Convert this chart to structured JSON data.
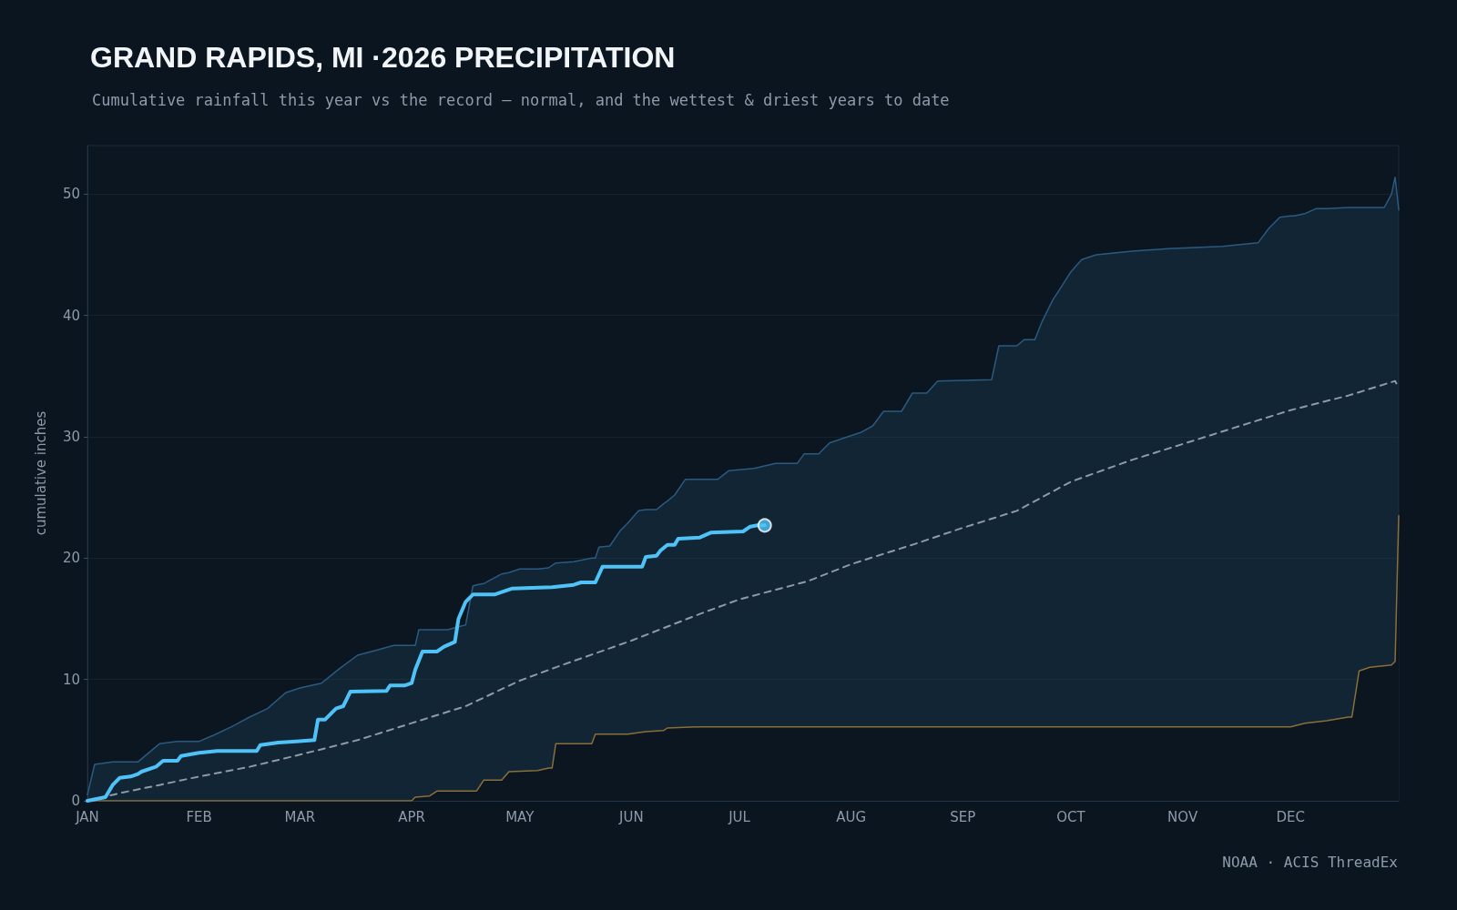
{
  "chart_data": {
    "type": "line",
    "title": "GRAND RAPIDS, MI ·2026 PRECIPITATION",
    "subtitle": "Cumulative rainfall this year vs the record — normal, and the wettest & driest years to date",
    "ylabel": "cumulative inches",
    "annotations": [
      "NOAA · ACIS ThreadEx"
    ],
    "xlim": [
      "2026-01-01",
      "2026-12-31"
    ],
    "xticks": [
      {
        "value": "2026-01-01",
        "label": "JAN"
      },
      {
        "value": "2026-02-01",
        "label": "FEB"
      },
      {
        "value": "2026-03-01",
        "label": "MAR"
      },
      {
        "value": "2026-04-01",
        "label": "APR"
      },
      {
        "value": "2026-05-01",
        "label": "MAY"
      },
      {
        "value": "2026-06-01",
        "label": "JUN"
      },
      {
        "value": "2026-07-01",
        "label": "JUL"
      },
      {
        "value": "2026-08-01",
        "label": "AUG"
      },
      {
        "value": "2026-09-01",
        "label": "SEP"
      },
      {
        "value": "2026-10-01",
        "label": "OCT"
      },
      {
        "value": "2026-11-01",
        "label": "NOV"
      },
      {
        "value": "2026-12-01",
        "label": "DEC"
      }
    ],
    "ylim": [
      0,
      54
    ],
    "yticks": [
      0,
      10,
      20,
      30,
      40,
      50
    ],
    "grid": "y",
    "marker": "none",
    "series": [
      {
        "type": "area",
        "color": "#2b5a80",
        "x": [
          "2026-01-01",
          "2026-01-03",
          "2026-01-08",
          "2026-01-15",
          "2026-01-17",
          "2026-01-21",
          "2026-01-26",
          "2026-02-01",
          "2026-02-05",
          "2026-02-10",
          "2026-02-15",
          "2026-02-20",
          "2026-02-25",
          "2026-03-01",
          "2026-03-07",
          "2026-03-12",
          "2026-03-17",
          "2026-03-22",
          "2026-03-27",
          "2026-04-01",
          "2026-04-02",
          "2026-04-03",
          "2026-04-06",
          "2026-04-08",
          "2026-04-11",
          "2026-04-16",
          "2026-04-18",
          "2026-04-19",
          "2026-04-21",
          "2026-04-26",
          "2026-04-28",
          "2026-05-01",
          "2026-05-06",
          "2026-05-09",
          "2026-05-11",
          "2026-05-16",
          "2026-05-21",
          "2026-05-22",
          "2026-05-23",
          "2026-05-26",
          "2026-05-29",
          "2026-05-31",
          "2026-06-03",
          "2026-06-05",
          "2026-06-08",
          "2026-06-10",
          "2026-06-11",
          "2026-06-13",
          "2026-06-16",
          "2026-06-20",
          "2026-06-25",
          "2026-06-28",
          "2026-07-05",
          "2026-07-11",
          "2026-07-17",
          "2026-07-19",
          "2026-07-23",
          "2026-07-26",
          "2026-07-31",
          "2026-08-04",
          "2026-08-07",
          "2026-08-10",
          "2026-08-15",
          "2026-08-18",
          "2026-08-22",
          "2026-08-25",
          "2026-09-09",
          "2026-09-11",
          "2026-09-16",
          "2026-09-18",
          "2026-09-21",
          "2026-09-23",
          "2026-09-26",
          "2026-09-28",
          "2026-10-01",
          "2026-10-04",
          "2026-10-08",
          "2026-10-18",
          "2026-10-28",
          "2026-11-12",
          "2026-11-22",
          "2026-11-25",
          "2026-11-28",
          "2026-12-01",
          "2026-12-02",
          "2026-12-05",
          "2026-12-08",
          "2026-12-11",
          "2026-12-17",
          "2026-12-18",
          "2026-12-20",
          "2026-12-23",
          "2026-12-27",
          "2026-12-29",
          "2026-12-30",
          "2026-12-31"
        ],
        "values": [
          0.5,
          3.0,
          3.2,
          3.2,
          3.7,
          4.7,
          4.9,
          4.9,
          5.4,
          6.1,
          6.9,
          7.6,
          8.9,
          9.3,
          9.7,
          10.9,
          12.0,
          12.4,
          12.8,
          12.8,
          12.8,
          14.1,
          14.1,
          14.1,
          14.1,
          14.5,
          17.7,
          17.8,
          17.9,
          18.7,
          18.8,
          19.1,
          19.1,
          19.2,
          19.6,
          19.7,
          20.0,
          20.0,
          20.9,
          21.0,
          22.3,
          22.9,
          23.9,
          24.0,
          24.0,
          24.5,
          24.7,
          25.2,
          26.5,
          26.5,
          26.5,
          27.2,
          27.4,
          27.8,
          27.8,
          28.6,
          28.6,
          29.5,
          30.0,
          30.4,
          30.9,
          32.1,
          32.1,
          33.6,
          33.6,
          34.6,
          34.7,
          37.5,
          37.5,
          38.0,
          38.0,
          39.5,
          41.3,
          42.2,
          43.6,
          44.6,
          45.0,
          45.3,
          45.5,
          45.7,
          46.0,
          47.2,
          48.1,
          48.2,
          48.2,
          48.4,
          48.8,
          48.8,
          48.9,
          48.9,
          48.9,
          48.9,
          48.9,
          50.0,
          51.4,
          48.7
        ]
      },
      {
        "type": "area",
        "color": "#8a6f3a",
        "x": [
          "2026-01-01",
          "2026-04-01",
          "2026-04-02",
          "2026-04-06",
          "2026-04-08",
          "2026-04-19",
          "2026-04-21",
          "2026-04-26",
          "2026-04-28",
          "2026-05-06",
          "2026-05-09",
          "2026-05-10",
          "2026-05-11",
          "2026-05-21",
          "2026-05-22",
          "2026-05-31",
          "2026-06-05",
          "2026-06-10",
          "2026-06-11",
          "2026-06-20",
          "2026-12-01",
          "2026-12-05",
          "2026-12-11",
          "2026-12-17",
          "2026-12-18",
          "2026-12-20",
          "2026-12-23",
          "2026-12-29",
          "2026-12-30",
          "2026-12-31"
        ],
        "values": [
          0,
          0,
          0.3,
          0.4,
          0.8,
          0.8,
          1.7,
          1.7,
          2.4,
          2.5,
          2.7,
          2.7,
          4.7,
          4.7,
          5.5,
          5.5,
          5.7,
          5.8,
          6.0,
          6.1,
          6.1,
          6.4,
          6.6,
          6.9,
          6.9,
          10.7,
          11.0,
          11.2,
          11.5,
          23.5
        ]
      },
      {
        "color": "#8e9aa6",
        "line_style": "dashed",
        "x": [
          "2026-01-01",
          "2026-01-11",
          "2026-01-21",
          "2026-02-01",
          "2026-02-15",
          "2026-03-01",
          "2026-03-17",
          "2026-04-01",
          "2026-04-16",
          "2026-05-01",
          "2026-05-11",
          "2026-06-01",
          "2026-06-20",
          "2026-07-01",
          "2026-07-20",
          "2026-08-01",
          "2026-08-19",
          "2026-09-01",
          "2026-09-16",
          "2026-10-01",
          "2026-10-18",
          "2026-11-01",
          "2026-11-17",
          "2026-12-01",
          "2026-12-17",
          "2026-12-30",
          "2026-12-31"
        ],
        "values": [
          0,
          0.7,
          1.3,
          2.0,
          2.8,
          3.8,
          5.0,
          6.4,
          7.8,
          9.9,
          11.0,
          13.2,
          15.4,
          16.6,
          18.1,
          19.5,
          21.2,
          22.5,
          23.9,
          26.3,
          28.1,
          29.4,
          30.9,
          32.2,
          33.4,
          34.6,
          34.0
        ]
      },
      {
        "color": "#4fc3f7",
        "x": [
          "2026-01-01",
          "2026-01-06",
          "2026-01-08",
          "2026-01-10",
          "2026-01-13",
          "2026-01-15",
          "2026-01-16",
          "2026-01-20",
          "2026-01-22",
          "2026-01-26",
          "2026-01-27",
          "2026-02-01",
          "2026-02-06",
          "2026-02-17",
          "2026-02-18",
          "2026-02-23",
          "2026-02-28",
          "2026-03-05",
          "2026-03-06",
          "2026-03-08",
          "2026-03-11",
          "2026-03-13",
          "2026-03-15",
          "2026-03-25",
          "2026-03-26",
          "2026-03-30",
          "2026-04-01",
          "2026-04-02",
          "2026-04-04",
          "2026-04-08",
          "2026-04-10",
          "2026-04-13",
          "2026-04-14",
          "2026-04-16",
          "2026-04-18",
          "2026-04-24",
          "2026-04-26",
          "2026-04-29",
          "2026-05-10",
          "2026-05-16",
          "2026-05-18",
          "2026-05-22",
          "2026-05-24",
          "2026-06-04",
          "2026-06-05",
          "2026-06-08",
          "2026-06-09",
          "2026-06-11",
          "2026-06-13",
          "2026-06-14",
          "2026-06-20",
          "2026-06-23",
          "2026-07-02",
          "2026-07-04",
          "2026-07-06",
          "2026-07-08"
        ],
        "values": [
          0,
          0.3,
          1.3,
          1.9,
          2.0,
          2.2,
          2.4,
          2.8,
          3.3,
          3.3,
          3.7,
          3.95,
          4.1,
          4.1,
          4.6,
          4.8,
          4.9,
          5.0,
          6.7,
          6.7,
          7.6,
          7.8,
          9.0,
          9.05,
          9.5,
          9.5,
          9.7,
          10.8,
          12.3,
          12.3,
          12.7,
          13.1,
          15.0,
          16.4,
          17.0,
          17.0,
          17.2,
          17.5,
          17.6,
          17.8,
          18.0,
          18.0,
          19.3,
          19.3,
          20.1,
          20.2,
          20.6,
          21.1,
          21.1,
          21.6,
          21.7,
          22.1,
          22.2,
          22.6,
          22.7,
          22.7
        ]
      },
      {
        "type": "scatter",
        "marker": "circle",
        "color": "#4fc3f7",
        "x": [
          "2026-07-08"
        ],
        "values": [
          22.7
        ]
      }
    ]
  }
}
